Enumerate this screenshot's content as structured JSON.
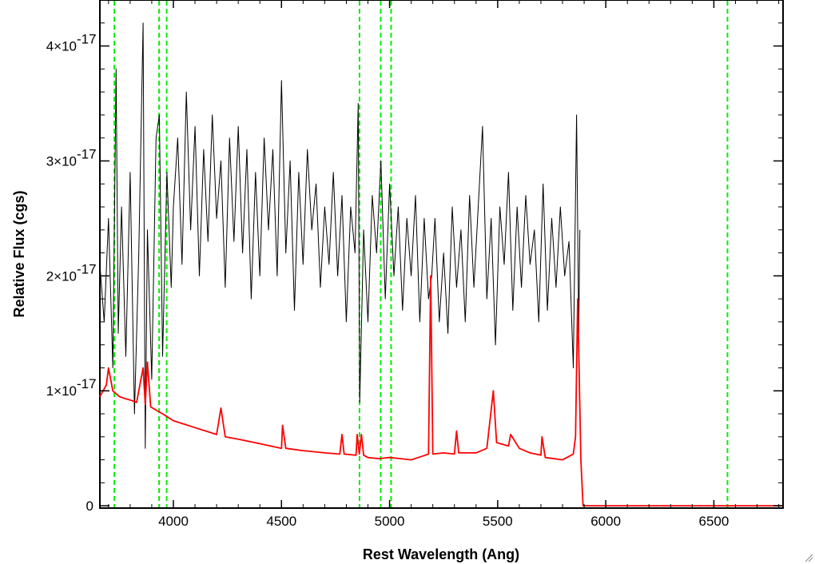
{
  "chart_data": {
    "type": "line",
    "title": "",
    "xlabel": "Rest Wavelength (Ang)",
    "ylabel": "Relative Flux (cgs)",
    "xlim": [
      3660,
      6820
    ],
    "ylim": [
      -2e-19,
      4.4e-17
    ],
    "grid": false,
    "x_ticks": [
      4000,
      4500,
      5000,
      5500,
      6000,
      6500
    ],
    "x_tick_labels": [
      "4000",
      "4500",
      "5000",
      "5500",
      "6000",
      "6500"
    ],
    "y_ticks": [
      0,
      1e-17,
      2e-17,
      3e-17,
      4e-17
    ],
    "y_tick_labels": [
      {
        "mantissa": "0",
        "exponent": ""
      },
      {
        "mantissa": "1×10",
        "exponent": "-17"
      },
      {
        "mantissa": "2×10",
        "exponent": "-17"
      },
      {
        "mantissa": "3×10",
        "exponent": "-17"
      },
      {
        "mantissa": "4×10",
        "exponent": "-17"
      }
    ],
    "series": [
      {
        "color": "#000000",
        "x_range": [
          3660,
          5880
        ],
        "note_values": "noisy observed spectrum, values in units of 1e-17",
        "points": [
          [
            3660,
            2.1
          ],
          [
            3680,
            1.6
          ],
          [
            3700,
            2.5
          ],
          [
            3720,
            1.2
          ],
          [
            3735,
            3.8
          ],
          [
            3745,
            1.5
          ],
          [
            3760,
            2.6
          ],
          [
            3780,
            1.3
          ],
          [
            3800,
            2.9
          ],
          [
            3820,
            0.8
          ],
          [
            3840,
            2.2
          ],
          [
            3860,
            4.2
          ],
          [
            3870,
            0.5
          ],
          [
            3880,
            2.4
          ],
          [
            3900,
            1.1
          ],
          [
            3920,
            3.2
          ],
          [
            3935,
            3.4
          ],
          [
            3950,
            1.3
          ],
          [
            3970,
            2.9
          ],
          [
            3990,
            1.9
          ],
          [
            4000,
            2.6
          ],
          [
            4020,
            3.2
          ],
          [
            4040,
            2.1
          ],
          [
            4060,
            3.6
          ],
          [
            4080,
            2.4
          ],
          [
            4100,
            3.3
          ],
          [
            4120,
            2.0
          ],
          [
            4140,
            3.1
          ],
          [
            4160,
            2.3
          ],
          [
            4180,
            3.4
          ],
          [
            4200,
            2.5
          ],
          [
            4220,
            3.0
          ],
          [
            4240,
            1.9
          ],
          [
            4260,
            3.2
          ],
          [
            4280,
            2.3
          ],
          [
            4300,
            3.3
          ],
          [
            4320,
            2.2
          ],
          [
            4340,
            3.1
          ],
          [
            4360,
            1.8
          ],
          [
            4380,
            2.9
          ],
          [
            4400,
            2.0
          ],
          [
            4420,
            3.2
          ],
          [
            4440,
            2.4
          ],
          [
            4460,
            3.1
          ],
          [
            4480,
            2.0
          ],
          [
            4500,
            3.7
          ],
          [
            4520,
            2.2
          ],
          [
            4540,
            3.0
          ],
          [
            4560,
            1.7
          ],
          [
            4580,
            2.9
          ],
          [
            4600,
            2.1
          ],
          [
            4620,
            3.1
          ],
          [
            4640,
            2.4
          ],
          [
            4660,
            2.8
          ],
          [
            4680,
            1.9
          ],
          [
            4700,
            2.6
          ],
          [
            4720,
            2.1
          ],
          [
            4740,
            2.9
          ],
          [
            4760,
            2.0
          ],
          [
            4780,
            2.7
          ],
          [
            4800,
            1.6
          ],
          [
            4820,
            2.6
          ],
          [
            4840,
            2.2
          ],
          [
            4855,
            3.5
          ],
          [
            4862,
            0.9
          ],
          [
            4880,
            2.4
          ],
          [
            4900,
            1.6
          ],
          [
            4920,
            2.7
          ],
          [
            4940,
            2.2
          ],
          [
            4960,
            3.0
          ],
          [
            4980,
            1.8
          ],
          [
            5000,
            2.8
          ],
          [
            5020,
            2.0
          ],
          [
            5040,
            2.6
          ],
          [
            5060,
            1.7
          ],
          [
            5080,
            2.5
          ],
          [
            5100,
            2.0
          ],
          [
            5120,
            2.7
          ],
          [
            5140,
            1.6
          ],
          [
            5160,
            2.5
          ],
          [
            5180,
            1.8
          ],
          [
            5195,
            2.0
          ],
          [
            5210,
            2.5
          ],
          [
            5230,
            1.6
          ],
          [
            5250,
            2.2
          ],
          [
            5270,
            1.5
          ],
          [
            5290,
            2.6
          ],
          [
            5310,
            1.9
          ],
          [
            5330,
            2.4
          ],
          [
            5350,
            1.6
          ],
          [
            5370,
            2.7
          ],
          [
            5390,
            1.9
          ],
          [
            5410,
            2.6
          ],
          [
            5430,
            3.3
          ],
          [
            5450,
            1.8
          ],
          [
            5470,
            2.5
          ],
          [
            5490,
            1.4
          ],
          [
            5510,
            2.6
          ],
          [
            5530,
            2.1
          ],
          [
            5550,
            2.9
          ],
          [
            5570,
            1.7
          ],
          [
            5590,
            2.6
          ],
          [
            5610,
            1.9
          ],
          [
            5630,
            2.7
          ],
          [
            5650,
            2.1
          ],
          [
            5670,
            2.4
          ],
          [
            5690,
            1.6
          ],
          [
            5710,
            2.8
          ],
          [
            5730,
            1.7
          ],
          [
            5750,
            2.5
          ],
          [
            5770,
            1.9
          ],
          [
            5790,
            2.6
          ],
          [
            5810,
            2.0
          ],
          [
            5830,
            2.3
          ],
          [
            5850,
            1.2
          ],
          [
            5865,
            3.4
          ],
          [
            5875,
            1.5
          ],
          [
            5880,
            2.4
          ]
        ]
      },
      {
        "color": "#ff0000",
        "x_range": [
          3660,
          6820
        ],
        "note_values": "template/model spectrum, values in units of 1e-17",
        "points": [
          [
            3660,
            0.95
          ],
          [
            3690,
            1.05
          ],
          [
            3700,
            1.2
          ],
          [
            3720,
            1.0
          ],
          [
            3750,
            0.95
          ],
          [
            3780,
            0.93
          ],
          [
            3800,
            0.92
          ],
          [
            3830,
            0.9
          ],
          [
            3860,
            1.2
          ],
          [
            3870,
            0.88
          ],
          [
            3880,
            1.25
          ],
          [
            3895,
            0.86
          ],
          [
            3950,
            0.8
          ],
          [
            4000,
            0.74
          ],
          [
            4100,
            0.68
          ],
          [
            4200,
            0.62
          ],
          [
            4220,
            0.85
          ],
          [
            4240,
            0.6
          ],
          [
            4300,
            0.58
          ],
          [
            4400,
            0.54
          ],
          [
            4500,
            0.5
          ],
          [
            4505,
            0.7
          ],
          [
            4520,
            0.5
          ],
          [
            4600,
            0.48
          ],
          [
            4700,
            0.46
          ],
          [
            4770,
            0.45
          ],
          [
            4780,
            0.62
          ],
          [
            4790,
            0.45
          ],
          [
            4845,
            0.44
          ],
          [
            4850,
            0.62
          ],
          [
            4860,
            0.45
          ],
          [
            4870,
            0.62
          ],
          [
            4880,
            0.44
          ],
          [
            4900,
            0.42
          ],
          [
            4950,
            0.41
          ],
          [
            5000,
            0.42
          ],
          [
            5050,
            0.41
          ],
          [
            5100,
            0.4
          ],
          [
            5150,
            0.43
          ],
          [
            5180,
            0.45
          ],
          [
            5190,
            2.0
          ],
          [
            5200,
            0.45
          ],
          [
            5250,
            0.46
          ],
          [
            5300,
            0.45
          ],
          [
            5310,
            0.65
          ],
          [
            5320,
            0.46
          ],
          [
            5400,
            0.46
          ],
          [
            5450,
            0.5
          ],
          [
            5480,
            1.0
          ],
          [
            5495,
            0.55
          ],
          [
            5550,
            0.52
          ],
          [
            5560,
            0.62
          ],
          [
            5600,
            0.5
          ],
          [
            5650,
            0.46
          ],
          [
            5700,
            0.44
          ],
          [
            5705,
            0.6
          ],
          [
            5720,
            0.42
          ],
          [
            5800,
            0.4
          ],
          [
            5850,
            0.45
          ],
          [
            5860,
            0.6
          ],
          [
            5870,
            1.8
          ],
          [
            5885,
            0.4
          ],
          [
            5895,
            0.0
          ],
          [
            6820,
            0.0
          ]
        ]
      }
    ],
    "vertical_markers": {
      "color": "#00ee00",
      "style": "dashed",
      "x": [
        3727,
        3934,
        3969,
        4861,
        4959,
        5007,
        6563
      ]
    }
  }
}
